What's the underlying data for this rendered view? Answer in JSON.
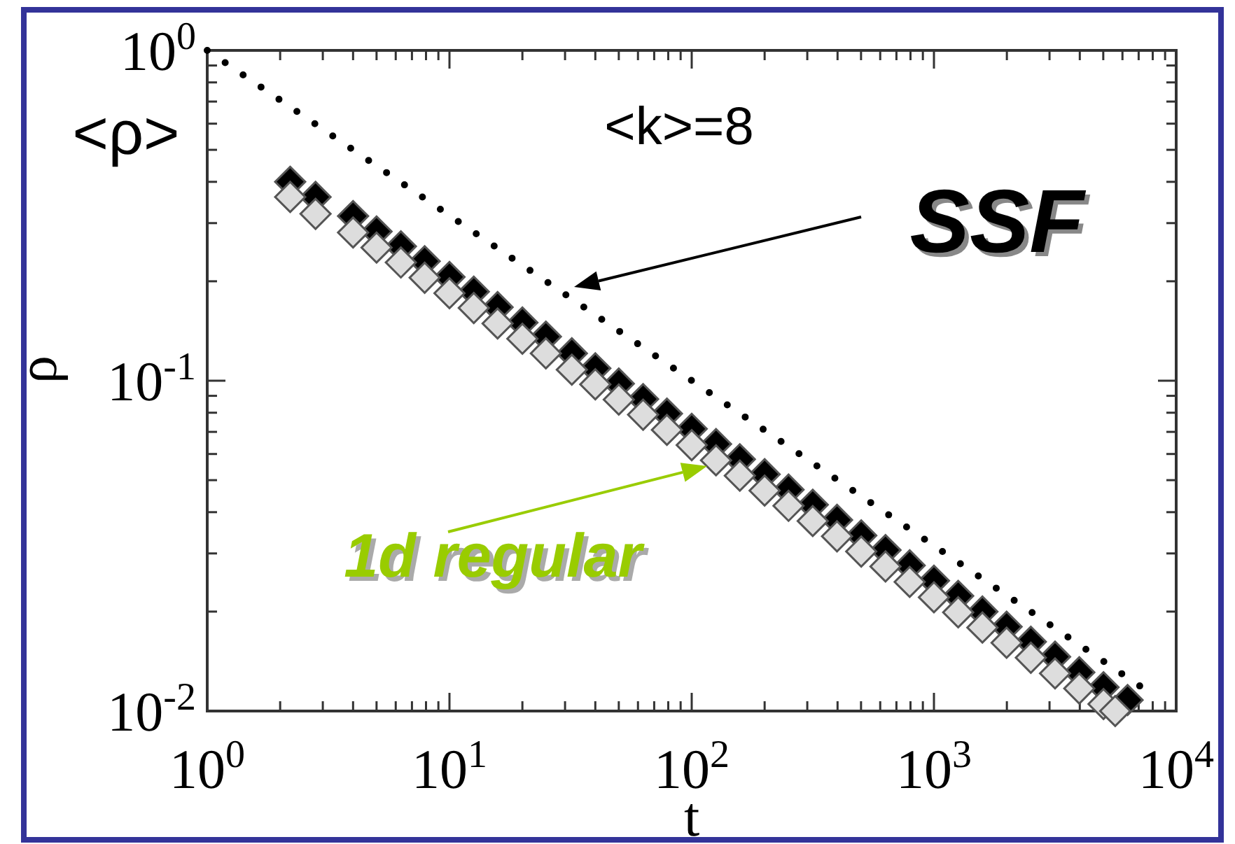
{
  "chart_data": {
    "type": "scatter",
    "xlabel": "t",
    "ylabel": "ρ",
    "log": "xy",
    "xlim": [
      1,
      10000
    ],
    "ylim": [
      0.01,
      1
    ],
    "xticks": [
      {
        "value": 1,
        "label": "10$^{0}$"
      },
      {
        "value": 2,
        "label": null
      },
      {
        "value": 3,
        "label": null
      },
      {
        "value": 4,
        "label": null
      },
      {
        "value": 5,
        "label": null
      },
      {
        "value": 6,
        "label": null
      },
      {
        "value": 7,
        "label": null
      },
      {
        "value": 8,
        "label": null
      },
      {
        "value": 9,
        "label": null
      },
      {
        "value": 10,
        "label": "10$^{1}$"
      },
      {
        "value": 20,
        "label": null
      },
      {
        "value": 30,
        "label": null
      },
      {
        "value": 40,
        "label": null
      },
      {
        "value": 50,
        "label": null
      },
      {
        "value": 60,
        "label": null
      },
      {
        "value": 70,
        "label": null
      },
      {
        "value": 80,
        "label": null
      },
      {
        "value": 90,
        "label": null
      },
      {
        "value": 100,
        "label": "10$^{2}$"
      },
      {
        "value": 200,
        "label": null
      },
      {
        "value": 300,
        "label": null
      },
      {
        "value": 400,
        "label": null
      },
      {
        "value": 500,
        "label": null
      },
      {
        "value": 600,
        "label": null
      },
      {
        "value": 700,
        "label": null
      },
      {
        "value": 800,
        "label": null
      },
      {
        "value": 900,
        "label": null
      },
      {
        "value": 1000,
        "label": "10$^{3}$"
      },
      {
        "value": 2000,
        "label": null
      },
      {
        "value": 3000,
        "label": null
      },
      {
        "value": 4000,
        "label": null
      },
      {
        "value": 5000,
        "label": null
      },
      {
        "value": 6000,
        "label": null
      },
      {
        "value": 7000,
        "label": null
      },
      {
        "value": 8000,
        "label": null
      },
      {
        "value": 9000,
        "label": null
      },
      {
        "value": 10000,
        "label": "10$^{4}$"
      }
    ],
    "yticks": [
      {
        "value": 0.01,
        "label": "10$^{-2}$"
      },
      {
        "value": 0.02,
        "label": null
      },
      {
        "value": 0.03,
        "label": null
      },
      {
        "value": 0.04,
        "label": null
      },
      {
        "value": 0.05,
        "label": null
      },
      {
        "value": 0.06,
        "label": null
      },
      {
        "value": 0.07,
        "label": null
      },
      {
        "value": 0.08,
        "label": null
      },
      {
        "value": 0.09,
        "label": null
      },
      {
        "value": 0.1,
        "label": "10$^{-1}$"
      },
      {
        "value": 0.2,
        "label": null
      },
      {
        "value": 0.3,
        "label": null
      },
      {
        "value": 0.4,
        "label": null
      },
      {
        "value": 0.5,
        "label": null
      },
      {
        "value": 0.6,
        "label": null
      },
      {
        "value": 0.7,
        "label": null
      },
      {
        "value": 0.8,
        "label": null
      },
      {
        "value": 0.9,
        "label": null
      },
      {
        "value": 1,
        "label": "10$^{0}$"
      }
    ],
    "series": [
      {
        "type": "line",
        "color": "#000000",
        "line_style": "dotted",
        "marker": "none",
        "x": [
          1,
          8000
        ],
        "values": [
          1,
          0.0112
        ]
      },
      {
        "color": "#000000",
        "marker": "diamond",
        "x": [
          2.2,
          2.8,
          4.0,
          5.0,
          6.3,
          7.9,
          10,
          12.6,
          15.8,
          20,
          25,
          32,
          40,
          50,
          63,
          79,
          100,
          126,
          158,
          200,
          251,
          316,
          398,
          501,
          631,
          794,
          1000,
          1259,
          1585,
          1995,
          2512,
          3162,
          3981,
          5012,
          6300
        ],
        "values": [
          0.4,
          0.36,
          0.315,
          0.283,
          0.255,
          0.23,
          0.206,
          0.186,
          0.167,
          0.15,
          0.136,
          0.121,
          0.109,
          0.098,
          0.088,
          0.0795,
          0.0715,
          0.0643,
          0.0578,
          0.0521,
          0.0468,
          0.0421,
          0.0379,
          0.034,
          0.0307,
          0.0276,
          0.0248,
          0.0223,
          0.02,
          0.018,
          0.0162,
          0.0146,
          0.0131,
          0.0118,
          0.0108
        ]
      },
      {
        "color": "#dddddd",
        "marker": "diamond",
        "x": [
          2.2,
          2.8,
          4.0,
          5.0,
          6.3,
          7.9,
          10,
          12.6,
          15.8,
          20,
          25,
          32,
          40,
          50,
          63,
          79,
          100,
          126,
          158,
          200,
          251,
          316,
          398,
          501,
          631,
          794,
          1000,
          1259,
          1585,
          1995,
          2512,
          3162,
          3981,
          5012,
          5600
        ],
        "values": [
          0.36,
          0.32,
          0.281,
          0.253,
          0.228,
          0.205,
          0.184,
          0.166,
          0.149,
          0.134,
          0.121,
          0.108,
          0.0975,
          0.0877,
          0.0789,
          0.071,
          0.0638,
          0.0574,
          0.0516,
          0.0465,
          0.0418,
          0.0376,
          0.0338,
          0.0304,
          0.0274,
          0.0246,
          0.0221,
          0.0199,
          0.0179,
          0.0161,
          0.0145,
          0.013,
          0.0117,
          0.0105,
          0.01
        ]
      }
    ],
    "annotations": [
      "<ρ>",
      "<k>=8",
      "SSF",
      "1d regular"
    ]
  }
}
